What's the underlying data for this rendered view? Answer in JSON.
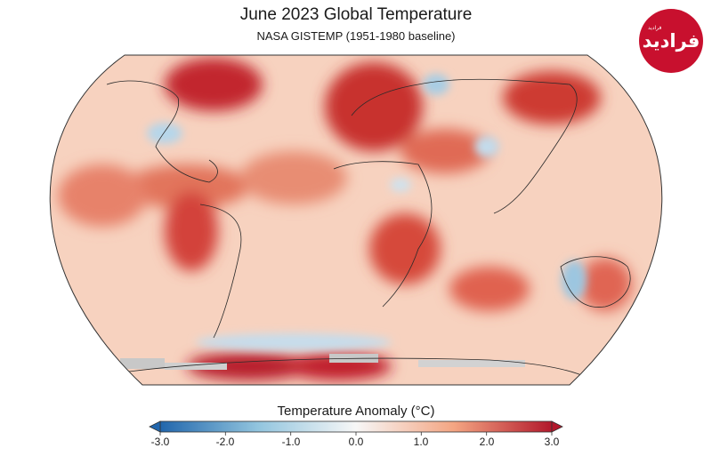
{
  "title": "June 2023 Global Temperature",
  "subtitle": "NASA GISTEMP (1951-1980 baseline)",
  "logo_text": "فرادید",
  "logo_small_text": "فرادید",
  "legend": {
    "title": "Temperature Anomaly (°C)",
    "unit": "°C",
    "ticks": [
      "-3.0",
      "-2.0",
      "-1.0",
      "0.0",
      "1.0",
      "2.0",
      "3.0"
    ],
    "range": [
      -3.0,
      3.0
    ]
  },
  "colors": {
    "cold_end": "#2166ac",
    "mid_cold": "#92c5de",
    "neutral": "#f7f7f7",
    "mid_warm": "#f4a582",
    "warm_end": "#b2182b",
    "no_data": "#c8c8c8",
    "background_anomaly": "#f6cbb4"
  }
}
